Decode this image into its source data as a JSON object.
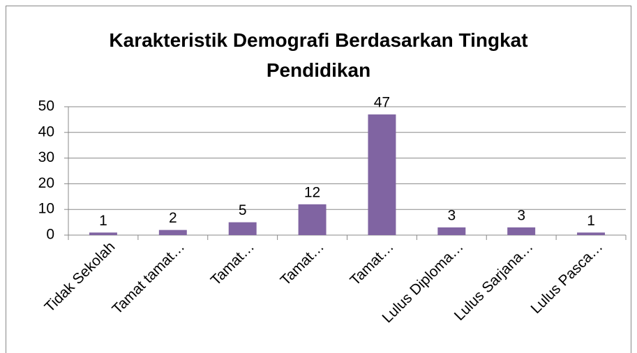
{
  "chart_data": {
    "type": "bar",
    "title": "Karakteristik Demografi Berdasarkan Tingkat Pendidikan",
    "categories": [
      "Tidak Sekolah",
      "Tamat tamat…",
      "Tamat…",
      "Tamat…",
      "Tamat…",
      "Lulus Diploma…",
      "Lulus Sarjana…",
      "Lulus Pasca…"
    ],
    "values": [
      1,
      2,
      5,
      12,
      47,
      3,
      3,
      1
    ],
    "color": "#8064a2",
    "ylim": [
      0,
      50
    ],
    "yticks": [
      0,
      10,
      20,
      30,
      40,
      50
    ],
    "grid": true
  }
}
